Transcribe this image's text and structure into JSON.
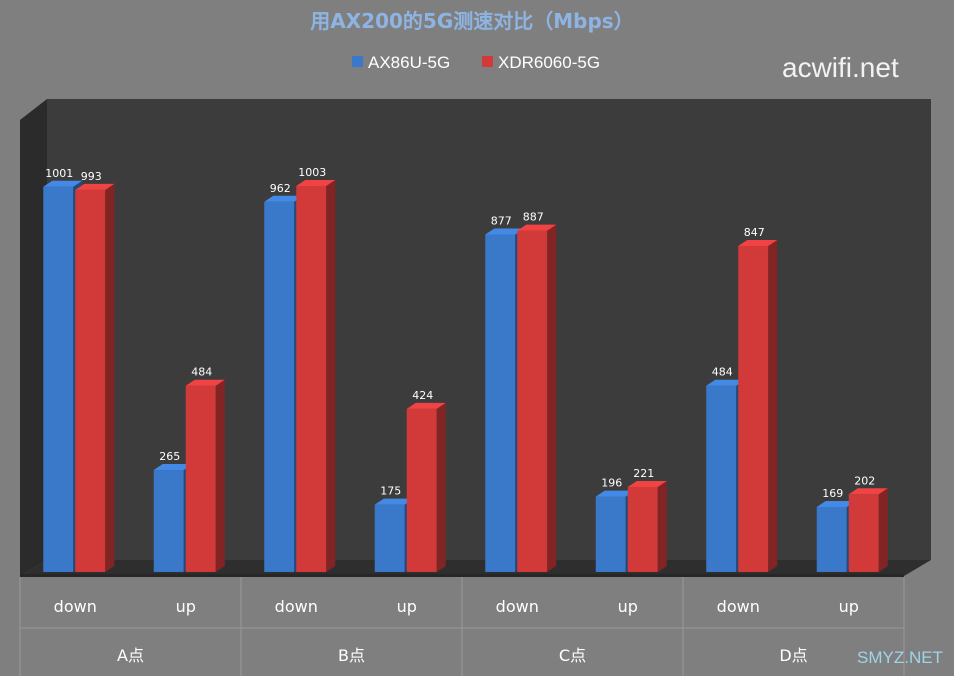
{
  "chart_data": {
    "type": "bar",
    "title": "用AX200的5G测速对比（Mbps）",
    "categories": [
      "down",
      "up",
      "down",
      "up",
      "down",
      "up",
      "down",
      "up"
    ],
    "groups": [
      "A点",
      "B点",
      "C点",
      "D点"
    ],
    "series": [
      {
        "name": "AX86U-5G",
        "color": "#3a78c9",
        "values": [
          1001,
          265,
          962,
          175,
          877,
          196,
          484,
          169
        ]
      },
      {
        "name": "XDR6060-5G",
        "color": "#d23a3a",
        "values": [
          993,
          484,
          1003,
          424,
          887,
          221,
          847,
          202
        ]
      }
    ],
    "ylim": [
      0,
      1003
    ],
    "legend": "top",
    "grid": false
  },
  "watermarks": {
    "top": "acwifi.net",
    "bottom": "SMYZ.NET"
  }
}
